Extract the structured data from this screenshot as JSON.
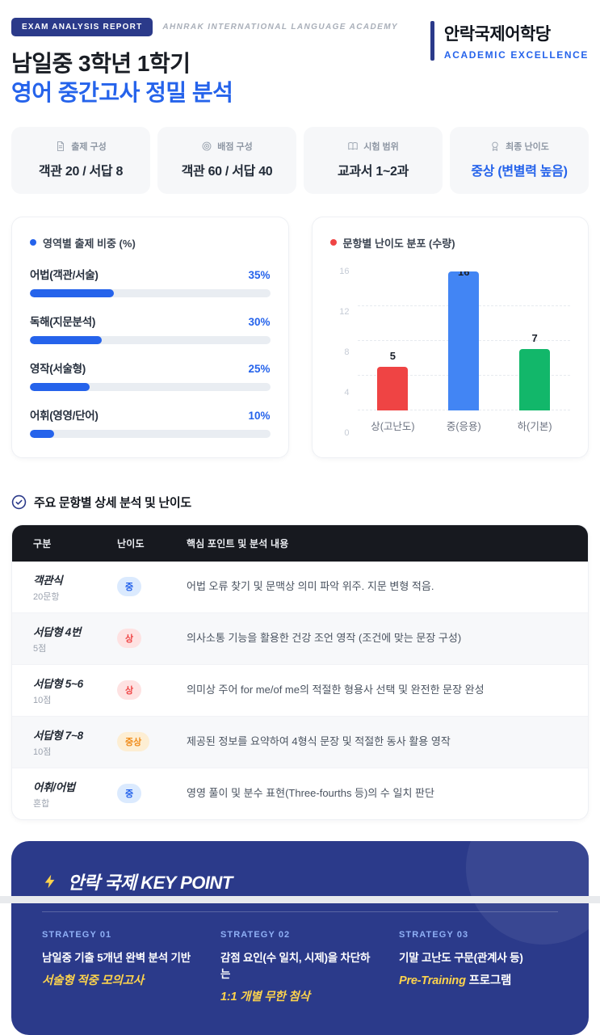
{
  "header": {
    "badge": "EXAM ANALYSIS REPORT",
    "subtitle": "AHNRAK INTERNATIONAL LANGUAGE ACADEMY",
    "logo_title": "안락국제어학당",
    "logo_subtitle": "ACADEMIC EXCELLENCE",
    "title_line1": "남일중 3학년 1학기",
    "title_line2": "영어 중간고사 정밀 분석"
  },
  "stats": [
    {
      "icon": "document-icon",
      "label": "출제 구성",
      "value": "객관 20 / 서답 8"
    },
    {
      "icon": "target-icon",
      "label": "배점 구성",
      "value": "객관 60 / 서답 40"
    },
    {
      "icon": "book-icon",
      "label": "시험 범위",
      "value": "교과서 1~2과"
    },
    {
      "icon": "medal-icon",
      "label": "최종 난이도",
      "value": "중상 (변별력 높음)"
    }
  ],
  "chart_data": [
    {
      "type": "bar",
      "orientation": "horizontal",
      "title": "영역별 출제 비중 (%)",
      "categories": [
        "어법(객관/서술)",
        "독해(지문분석)",
        "영작(서술형)",
        "어휘(영영/단어)"
      ],
      "values": [
        35,
        30,
        25,
        10
      ],
      "value_labels": [
        "35%",
        "30%",
        "25%",
        "10%"
      ],
      "xlim": [
        0,
        100
      ],
      "bar_color": "#2563eb",
      "track_color": "#e9edf2",
      "legend_dot_color": "#2563eb"
    },
    {
      "type": "bar",
      "orientation": "vertical",
      "title": "문항별 난이도 분포 (수량)",
      "categories": [
        "상(고난도)",
        "중(응용)",
        "하(기본)"
      ],
      "values": [
        5,
        16,
        7
      ],
      "colors": [
        "#ef4444",
        "#4285f4",
        "#12b76a"
      ],
      "ylim": [
        0,
        16
      ],
      "yticks": [
        0,
        4,
        8,
        12,
        16
      ],
      "grid": "dashed",
      "legend_dot_color": "#ef4444"
    }
  ],
  "analysis": {
    "section_title": "주요 문항별 상세 분석 및 난이도",
    "columns": [
      "구분",
      "난이도",
      "핵심 포인트 및 분석 내용"
    ],
    "rows": [
      {
        "category": "객관식",
        "sub": "20문항",
        "difficulty": "중",
        "content": "어법 오류 찾기 및 문맥상 의미 파악 위주. 지문 변형 적음."
      },
      {
        "category": "서답형 4번",
        "sub": "5점",
        "difficulty": "상",
        "content": "의사소통 기능을 활용한 건강 조언 영작 (조건에 맞는 문장 구성)"
      },
      {
        "category": "서답형 5~6",
        "sub": "10점",
        "difficulty": "상",
        "content": "의미상 주어 for me/of me의 적절한 형용사 선택 및 완전한 문장 완성"
      },
      {
        "category": "서답형 7~8",
        "sub": "10점",
        "difficulty": "중상",
        "content": "제공된 정보를 요약하여 4형식 문장 및 적절한 동사 활용 영작"
      },
      {
        "category": "어휘/어법",
        "sub": "혼합",
        "difficulty": "중",
        "content": "영영 풀이 및 분수 표현(Three-fourths 등)의 수 일치 판단"
      }
    ]
  },
  "keypoint": {
    "title": "안락 국제 KEY POINT",
    "strategies": [
      {
        "label": "STRATEGY 01",
        "line1": "남일중 기출 5개년 완벽 분석 기반",
        "highlight": "서술형 적중 모의고사",
        "suffix": ""
      },
      {
        "label": "STRATEGY 02",
        "line1": "감점 요인(수 일치, 시제)을 차단하는",
        "highlight": "1:1 개별 무한 첨삭",
        "suffix": ""
      },
      {
        "label": "STRATEGY 03",
        "line1": "기말 고난도 구문(관계사 등)",
        "highlight": "Pre-Training",
        "suffix": " 프로그램"
      }
    ]
  },
  "colors": {
    "navy": "#2b3a8a",
    "accent_blue": "#2563eb",
    "yellow": "#fcd34d",
    "pill_mid_bg": "#dbeafe",
    "pill_high_bg": "#fee2e2",
    "pill_midhigh_bg": "#fdeed3",
    "table_header_bg": "#17191f"
  }
}
